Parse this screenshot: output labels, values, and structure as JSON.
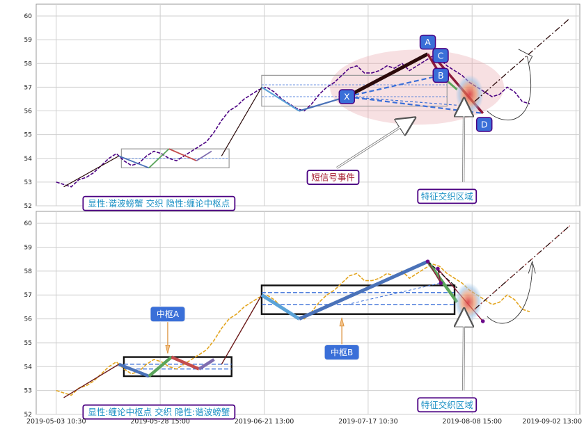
{
  "chart_data": [
    {
      "type": "line",
      "panel": "top",
      "title": "",
      "xlabel": "",
      "ylabel": "",
      "ylim": [
        52,
        60.5
      ],
      "y_ticks": [
        "52",
        "53",
        "54",
        "55",
        "56",
        "57",
        "58",
        "59",
        "60"
      ],
      "grid": true,
      "series": [
        {
          "x": [
            0,
            3,
            6,
            9,
            12,
            15,
            18,
            21,
            24,
            27,
            30,
            33,
            36,
            39,
            42,
            45,
            48,
            51,
            54,
            57,
            60,
            63,
            66,
            69,
            72,
            75,
            78,
            81,
            84,
            87,
            90,
            93,
            96,
            99,
            102,
            105,
            108,
            111,
            114,
            117,
            120,
            123,
            126,
            129,
            132,
            135,
            138,
            141,
            144,
            147,
            150,
            153,
            156,
            159,
            162,
            165,
            168,
            171,
            174,
            177,
            180,
            183,
            186,
            189
          ],
          "y": [
            53.0,
            52.9,
            52.8,
            53.1,
            53.2,
            53.4,
            53.7,
            54.0,
            54.2,
            53.9,
            53.7,
            53.8,
            54.1,
            54.3,
            54.2,
            54.0,
            53.9,
            54.1,
            54.3,
            54.5,
            54.7,
            55.1,
            55.6,
            56.0,
            56.2,
            56.5,
            56.7,
            56.9,
            57.0,
            56.8,
            56.5,
            56.3,
            56.1,
            56.0,
            56.3,
            56.7,
            57.0,
            57.2,
            57.5,
            57.8,
            57.9,
            57.6,
            57.6,
            57.7,
            57.9,
            57.8,
            58.0,
            57.7,
            57.9,
            58.1,
            58.3,
            58.2,
            57.9,
            57.7,
            57.5,
            57.2,
            57.0,
            56.8,
            56.6,
            56.7,
            57.0,
            56.8,
            56.4,
            56.3
          ]
        }
      ],
      "annotations": {
        "watermark": "显性:谐波螃蟹 交织 隐性:缠论中枢点",
        "event_label": "短信号事件",
        "zone_label": "特征交织区域",
        "points": [
          {
            "label": "X",
            "x": 116,
            "y": 56.6
          },
          {
            "label": "A",
            "x": 148.3,
            "y": 58.4
          },
          {
            "label": "B",
            "x": 153.5,
            "y": 57.5
          },
          {
            "label": "C",
            "x": 152.3,
            "y": 58.1
          },
          {
            "label": "D",
            "x": 170.3,
            "y": 55.9
          }
        ]
      }
    },
    {
      "type": "line",
      "panel": "bottom",
      "title": "",
      "xlabel": "",
      "ylabel": "",
      "ylim": [
        52,
        60.5
      ],
      "y_ticks": [
        "52",
        "53",
        "54",
        "55",
        "56",
        "57",
        "58",
        "59",
        "60"
      ],
      "grid": true,
      "series": [
        {
          "x": [
            0,
            3,
            6,
            9,
            12,
            15,
            18,
            21,
            24,
            27,
            30,
            33,
            36,
            39,
            42,
            45,
            48,
            51,
            54,
            57,
            60,
            63,
            66,
            69,
            72,
            75,
            78,
            81,
            84,
            87,
            90,
            93,
            96,
            99,
            102,
            105,
            108,
            111,
            114,
            117,
            120,
            123,
            126,
            129,
            132,
            135,
            138,
            141,
            144,
            147,
            150,
            153,
            156,
            159,
            162,
            165,
            168,
            171,
            174,
            177,
            180,
            183,
            186,
            189
          ],
          "y": [
            53.0,
            52.9,
            52.8,
            53.1,
            53.2,
            53.4,
            53.7,
            54.0,
            54.2,
            53.9,
            53.7,
            53.8,
            54.1,
            54.3,
            54.2,
            54.0,
            53.9,
            54.1,
            54.3,
            54.5,
            54.7,
            55.1,
            55.6,
            56.0,
            56.2,
            56.5,
            56.7,
            56.9,
            57.0,
            56.8,
            56.5,
            56.3,
            56.1,
            56.0,
            56.3,
            56.7,
            57.0,
            57.2,
            57.5,
            57.8,
            57.9,
            57.6,
            57.6,
            57.7,
            57.9,
            57.8,
            58.0,
            57.7,
            57.9,
            58.1,
            58.3,
            58.2,
            57.9,
            57.7,
            57.5,
            57.2,
            57.0,
            56.8,
            56.6,
            56.7,
            57.0,
            56.8,
            56.4,
            56.3
          ]
        }
      ],
      "annotations": {
        "watermark": "显性:缠论中枢点 交织 隐性:谐波螃蟹",
        "zone_label": "特征交织区域",
        "hub_a_label": "中枢A",
        "hub_b_label": "中枢B"
      }
    }
  ],
  "x_tick_labels": [
    "2019-05-03 10:30",
    "2019-05-28 15:00",
    "2019-06-21 13:00",
    "2019-07-17 10:30",
    "2019-08-08 15:00",
    "2019-09-02 13:00"
  ],
  "colors": {
    "price_top": "#4b0082",
    "price_bottom": "#e3a51f",
    "hub_box": "#111111",
    "label_box": "#3a6fd8",
    "label_border": "#4b0082",
    "watermark_text": "#1a8fc4",
    "event_text": "#a4162a",
    "zone_fill": "#e9a6ad",
    "point_box": "#3a6fd8"
  }
}
